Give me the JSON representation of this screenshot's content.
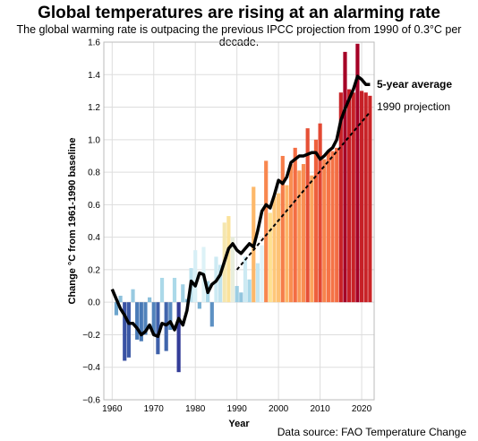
{
  "title": "Global temperatures are rising at an alarming rate",
  "subtitle": "The global warming rate is outpacing the previous IPCC projection from 1990 of 0.3°C per decade.",
  "source": "Data source: FAO Temperature Change",
  "chart_data": {
    "type": "bar",
    "xlabel": "Year",
    "ylabel": "Change °C from 1961-1990 baseline",
    "xlim": [
      1958,
      2023
    ],
    "ylim": [
      -0.6,
      1.6
    ],
    "xticks": [
      1960,
      1970,
      1980,
      1990,
      2000,
      2010,
      2020
    ],
    "yticks": [
      -0.6,
      -0.4,
      -0.2,
      0.0,
      0.2,
      0.4,
      0.6,
      0.8,
      1.0,
      1.2,
      1.4,
      1.6
    ],
    "grid": true,
    "years": [
      1961,
      1962,
      1963,
      1964,
      1965,
      1966,
      1967,
      1968,
      1969,
      1970,
      1971,
      1972,
      1973,
      1974,
      1975,
      1976,
      1977,
      1978,
      1979,
      1980,
      1981,
      1982,
      1983,
      1984,
      1985,
      1986,
      1987,
      1988,
      1989,
      1990,
      1991,
      1992,
      1993,
      1994,
      1995,
      1996,
      1997,
      1998,
      1999,
      2000,
      2001,
      2002,
      2003,
      2004,
      2005,
      2006,
      2007,
      2008,
      2009,
      2010,
      2011,
      2012,
      2013,
      2014,
      2015,
      2016,
      2017,
      2018,
      2019,
      2020,
      2021,
      2022
    ],
    "values": [
      -0.08,
      0.04,
      -0.36,
      -0.34,
      0.08,
      -0.23,
      -0.24,
      -0.2,
      0.03,
      -0.2,
      -0.32,
      0.15,
      -0.3,
      -0.17,
      0.15,
      -0.43,
      0.11,
      0.02,
      0.21,
      0.32,
      -0.04,
      0.34,
      0.13,
      -0.15,
      0.28,
      0.23,
      0.49,
      0.53,
      0.4,
      0.1,
      0.06,
      0.28,
      0.14,
      0.71,
      0.24,
      0.35,
      0.87,
      0.55,
      0.65,
      0.67,
      0.9,
      0.72,
      0.85,
      0.95,
      0.81,
      0.85,
      1.07,
      0.78,
      1.0,
      1.1,
      0.88,
      0.93,
      0.93,
      0.95,
      1.29,
      1.54,
      1.31,
      1.29,
      1.59,
      1.3,
      1.29,
      1.27
    ],
    "series": [
      {
        "name": "5-year average",
        "x": [
          1960,
          1961,
          1962,
          1963,
          1964,
          1965,
          1966,
          1967,
          1968,
          1969,
          1970,
          1971,
          1972,
          1973,
          1974,
          1975,
          1976,
          1977,
          1978,
          1979,
          1980,
          1981,
          1982,
          1983,
          1984,
          1985,
          1986,
          1987,
          1988,
          1989,
          1990,
          1991,
          1992,
          1993,
          1994,
          1995,
          1996,
          1997,
          1998,
          1999,
          2000,
          2001,
          2002,
          2003,
          2004,
          2005,
          2006,
          2007,
          2008,
          2009,
          2010,
          2011,
          2012,
          2013,
          2014,
          2015,
          2016,
          2017,
          2018,
          2019,
          2020,
          2021,
          2022
        ],
        "y": [
          0.08,
          0.02,
          -0.04,
          -0.08,
          -0.13,
          -0.13,
          -0.16,
          -0.2,
          -0.18,
          -0.14,
          -0.2,
          -0.21,
          -0.13,
          -0.14,
          -0.12,
          -0.17,
          -0.1,
          -0.14,
          -0.05,
          0.13,
          0.1,
          0.18,
          0.17,
          0.06,
          0.11,
          0.13,
          0.17,
          0.25,
          0.33,
          0.36,
          0.32,
          0.3,
          0.33,
          0.36,
          0.34,
          0.44,
          0.56,
          0.6,
          0.58,
          0.66,
          0.75,
          0.73,
          0.77,
          0.86,
          0.88,
          0.9,
          0.9,
          0.91,
          0.92,
          0.92,
          0.88,
          0.9,
          0.93,
          0.95,
          1.0,
          1.12,
          1.19,
          1.25,
          1.31,
          1.39,
          1.37,
          1.34,
          1.34
        ]
      },
      {
        "name": "1990 projection",
        "x": [
          1990,
          2022
        ],
        "y": [
          0.2,
          1.17
        ]
      }
    ]
  }
}
